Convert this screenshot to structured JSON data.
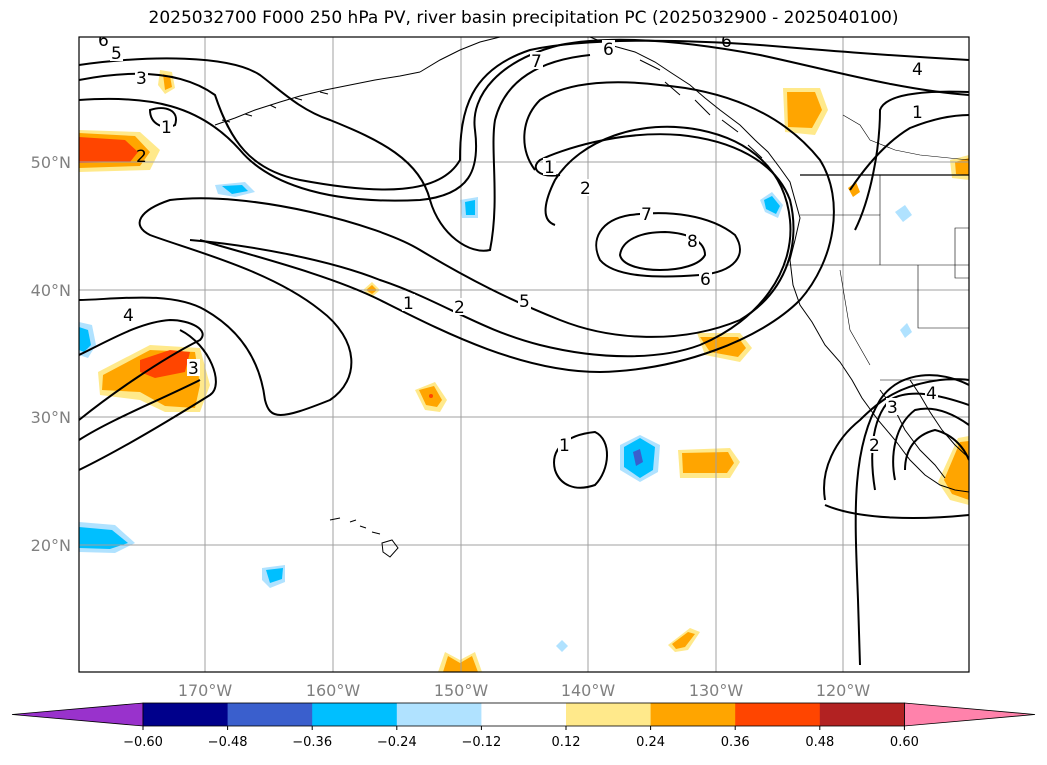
{
  "title": "2025032700 F000 250 hPa PV, river basin precipitation PC (2025032900 - 2025040100)",
  "map": {
    "lon_labels": [
      "170°W",
      "160°W",
      "150°W",
      "140°W",
      "130°W",
      "120°W"
    ],
    "lat_labels": [
      "50°N",
      "40°N",
      "30°N",
      "20°N"
    ],
    "grid_color": "#a0a0a0",
    "coastline_color": "#000000"
  },
  "contours": {
    "color": "#000000",
    "labels": [
      "6",
      "5",
      "3",
      "1",
      "2",
      "7",
      "6",
      "6",
      "4",
      "1",
      "1",
      "2",
      "7",
      "8",
      "6",
      "5",
      "2",
      "1",
      "4",
      "3",
      "1",
      "2",
      "3",
      "4"
    ]
  },
  "colorbar": {
    "ticks": [
      "−0.60",
      "−0.48",
      "−0.36",
      "−0.24",
      "−0.12",
      "0.12",
      "0.24",
      "0.36",
      "0.48",
      "0.60"
    ],
    "colors": [
      "#9932cc",
      "#00008b",
      "#3a5fcd",
      "#00bfff",
      "#b0e2ff",
      "#ffffff",
      "#ffe98b",
      "#ffa500",
      "#ff4500",
      "#b22222",
      "#ff82ab"
    ]
  }
}
